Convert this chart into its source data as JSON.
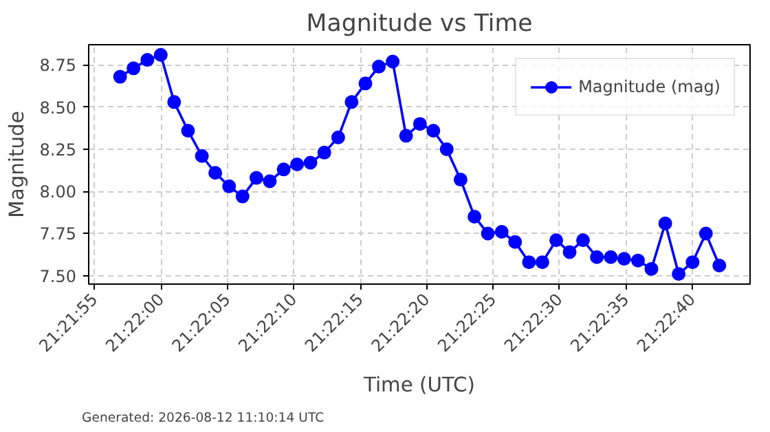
{
  "chart_data": {
    "type": "line",
    "title": "Magnitude vs Time",
    "xlabel": "Time (UTC)",
    "ylabel": "Magnitude",
    "x": [
      21.36581,
      21.36609,
      21.36638,
      21.36666,
      21.36694,
      21.36723,
      21.36752,
      21.3678,
      21.36809,
      21.36837,
      21.36866,
      21.36894,
      21.36923,
      21.36951,
      21.36979,
      21.37008,
      21.37037,
      21.37065,
      21.37094,
      21.37122,
      21.37151,
      21.37179,
      21.37208,
      21.37236,
      21.37264,
      21.37293,
      21.37322,
      21.3735,
      21.37379,
      21.37407,
      21.37436,
      21.37464,
      21.37493,
      21.37521,
      21.37549,
      21.37578,
      21.37607,
      21.37635,
      21.37664,
      21.37692,
      21.37721,
      21.37749,
      21.37778,
      21.37806,
      21.37834
    ],
    "series": [
      {
        "name": "Magnitude (mag)",
        "color": "#0000ff",
        "values": [
          8.68,
          8.73,
          8.78,
          8.81,
          8.53,
          8.36,
          8.21,
          8.11,
          8.03,
          7.97,
          8.08,
          8.06,
          8.13,
          8.16,
          8.17,
          8.23,
          8.32,
          8.53,
          8.64,
          8.74,
          8.77,
          8.33,
          8.4,
          8.36,
          8.25,
          8.07,
          7.85,
          7.75,
          7.76,
          7.7,
          7.58,
          7.58,
          7.71,
          7.64,
          7.71,
          7.61,
          7.61,
          7.6,
          7.59,
          7.54,
          7.81,
          7.51,
          7.58,
          7.75,
          7.56
        ]
      }
    ],
    "xlim": [
      21.365153,
      21.378983
    ],
    "xticks": [
      {
        "value": 21.365278,
        "label": "21:21:55"
      },
      {
        "value": 21.366667,
        "label": "21:22:00"
      },
      {
        "value": 21.368056,
        "label": "21:22:05"
      },
      {
        "value": 21.369444,
        "label": "21:22:10"
      },
      {
        "value": 21.370833,
        "label": "21:22:15"
      },
      {
        "value": 21.372222,
        "label": "21:22:20"
      },
      {
        "value": 21.373611,
        "label": "21:22:25"
      },
      {
        "value": 21.375,
        "label": "21:22:30"
      },
      {
        "value": 21.376389,
        "label": "21:22:35"
      },
      {
        "value": 21.377778,
        "label": "21:22:40"
      }
    ],
    "ylim": [
      7.45,
      8.87
    ],
    "yticks": [
      {
        "value": 7.5,
        "label": "7.50"
      },
      {
        "value": 7.75,
        "label": "7.75"
      },
      {
        "value": 8.0,
        "label": "8.00"
      },
      {
        "value": 8.25,
        "label": "8.25"
      },
      {
        "value": 8.5,
        "label": "8.50"
      },
      {
        "value": 8.75,
        "label": "8.75"
      }
    ],
    "grid": true,
    "legend": "top right",
    "marker": "circle",
    "line_style": "solid",
    "annotations": [
      "Generated: 2026-08-12 11:10:14 UTC"
    ]
  }
}
